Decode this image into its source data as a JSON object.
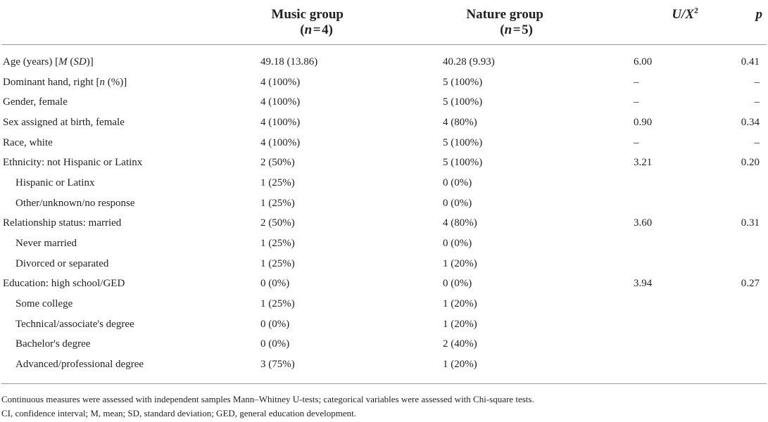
{
  "table": {
    "headers": {
      "music": {
        "name": "Music group",
        "n": "(n = 4)"
      },
      "nature": {
        "name": "Nature group",
        "n": "(n = 5)"
      },
      "u": "U/X",
      "u_sup": "2",
      "p": "p"
    },
    "rows": [
      {
        "label": "Age (years) [M (SD)]",
        "indent": false,
        "music": "49.18 (13.86)",
        "nature": "40.28 (9.93)",
        "u": "6.00",
        "p": "0.41"
      },
      {
        "label": "Dominant hand, right [n (%)]",
        "indent": false,
        "music": "4 (100%)",
        "nature": "5 (100%)",
        "u": "–",
        "p": "–"
      },
      {
        "label": "Gender, female",
        "indent": false,
        "music": "4 (100%)",
        "nature": "5 (100%)",
        "u": "–",
        "p": "–"
      },
      {
        "label": "Sex assigned at birth, female",
        "indent": false,
        "music": "4 (100%)",
        "nature": "4 (80%)",
        "u": "0.90",
        "p": "0.34"
      },
      {
        "label": "Race, white",
        "indent": false,
        "music": "4 (100%)",
        "nature": "5 (100%)",
        "u": "–",
        "p": "–"
      },
      {
        "label": "Ethnicity: not Hispanic or Latinx",
        "indent": false,
        "music": "2 (50%)",
        "nature": "5 (100%)",
        "u": "3.21",
        "p": "0.20"
      },
      {
        "label": "Hispanic or Latinx",
        "indent": true,
        "music": "1 (25%)",
        "nature": "0 (0%)",
        "u": "",
        "p": ""
      },
      {
        "label": "Other/unknown/no response",
        "indent": true,
        "music": "1 (25%)",
        "nature": "0 (0%)",
        "u": "",
        "p": ""
      },
      {
        "label": "Relationship status: married",
        "indent": false,
        "music": "2 (50%)",
        "nature": "4 (80%)",
        "u": "3.60",
        "p": "0.31"
      },
      {
        "label": "Never married",
        "indent": true,
        "music": "1 (25%)",
        "nature": "0 (0%)",
        "u": "",
        "p": ""
      },
      {
        "label": "Divorced or separated",
        "indent": true,
        "music": "1 (25%)",
        "nature": "1 (20%)",
        "u": "",
        "p": ""
      },
      {
        "label": "Education: high school/GED",
        "indent": false,
        "music": "0 (0%)",
        "nature": "0 (0%)",
        "u": "3.94",
        "p": "0.27"
      },
      {
        "label": "Some college",
        "indent": true,
        "music": "1 (25%)",
        "nature": "1 (20%)",
        "u": "",
        "p": ""
      },
      {
        "label": "Technical/associate's degree",
        "indent": true,
        "music": "0 (0%)",
        "nature": "1 (20%)",
        "u": "",
        "p": ""
      },
      {
        "label": "Bachelor's degree",
        "indent": true,
        "music": "0 (0%)",
        "nature": "2 (40%)",
        "u": "",
        "p": ""
      },
      {
        "label": "Advanced/professional degree",
        "indent": true,
        "music": "3 (75%)",
        "nature": "1 (20%)",
        "u": "",
        "p": ""
      }
    ]
  },
  "notes": [
    "Continuous measures were assessed with independent samples Mann–Whitney U-tests; categorical variables were assessed with Chi-square tests.",
    "CI, confidence interval; M, mean; SD, standard deviation; GED, general education development."
  ]
}
